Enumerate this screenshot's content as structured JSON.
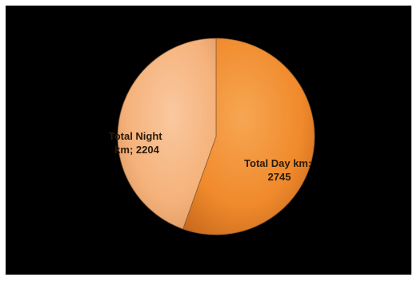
{
  "chart_data": {
    "type": "pie",
    "title": "",
    "categories": [
      "Total Day km",
      "Total Night km"
    ],
    "values": [
      2745,
      2204
    ],
    "slices": [
      {
        "name": "Total Day km",
        "value": 2745,
        "label_line1": "Total Day km;",
        "label_line2": "2745",
        "color": "#f08a2c"
      },
      {
        "name": "Total Night km",
        "value": 2204,
        "label_line1": "Total Night",
        "label_line2": "km; 2204",
        "color": "#f6b884"
      }
    ],
    "legend": "none",
    "background_color": "#000000",
    "start_angle_deg": 0,
    "direction": "clockwise"
  }
}
